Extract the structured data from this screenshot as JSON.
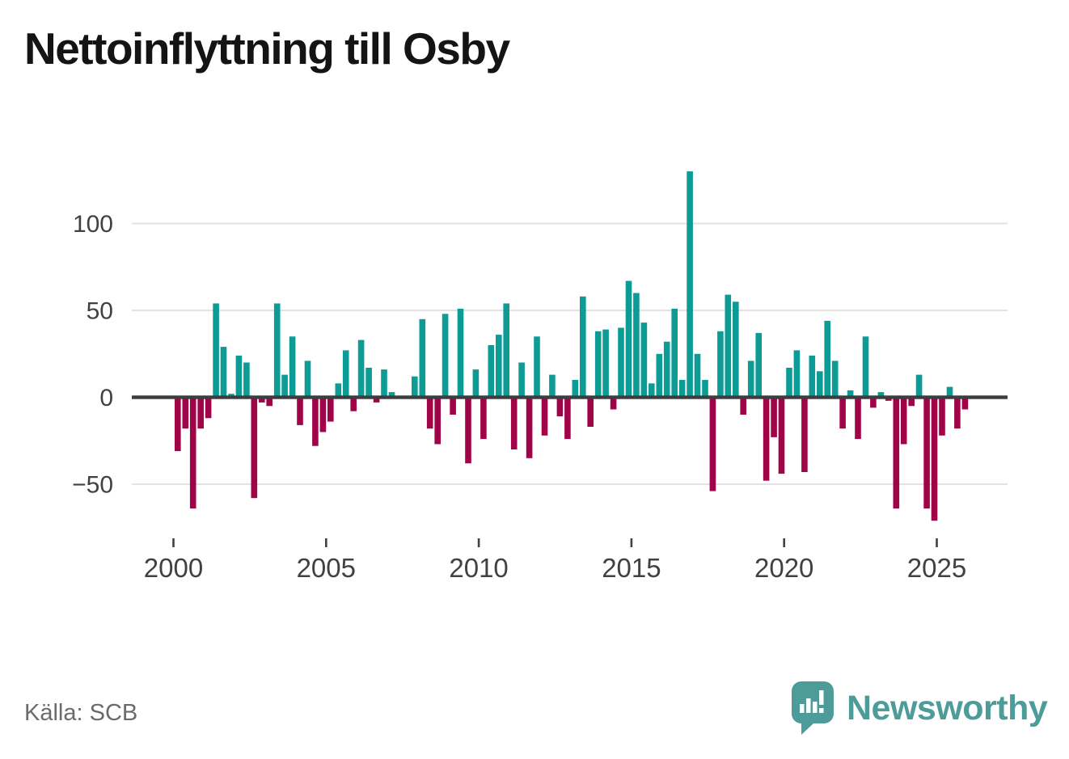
{
  "header": {
    "title": "Nettoinflyttning till Osby"
  },
  "chart_data": {
    "type": "bar",
    "title": "Nettoinflyttning till Osby",
    "frequency": "quarterly",
    "start_period": "2000Q1",
    "end_period": "2025Q4",
    "values": [
      -31,
      -18,
      -64,
      -18,
      -12,
      54,
      29,
      2,
      24,
      20,
      -58,
      -3,
      -5,
      54,
      13,
      35,
      -16,
      21,
      -28,
      -20,
      -14,
      8,
      27,
      -8,
      33,
      17,
      -3,
      16,
      3,
      0,
      0,
      12,
      45,
      -18,
      -27,
      48,
      -10,
      51,
      -38,
      16,
      -24,
      30,
      36,
      54,
      -30,
      20,
      -35,
      35,
      -22,
      13,
      -11,
      -24,
      10,
      58,
      -17,
      38,
      39,
      -7,
      40,
      67,
      60,
      43,
      8,
      25,
      32,
      51,
      10,
      130,
      25,
      10,
      -54,
      38,
      59,
      55,
      -10,
      21,
      37,
      -48,
      -23,
      -44,
      17,
      27,
      -43,
      24,
      15,
      44,
      21,
      -18,
      4,
      -24,
      35,
      -6,
      3,
      -2,
      -64,
      -27,
      -5,
      13,
      -64,
      -71,
      -22,
      6,
      -18,
      -7
    ],
    "y_ticks": [
      {
        "value": 100,
        "label": "100"
      },
      {
        "value": 50,
        "label": "50"
      },
      {
        "value": 0,
        "label": "0"
      },
      {
        "value": -50,
        "label": "−50"
      }
    ],
    "x_ticks": [
      {
        "year": 2000,
        "label": "2000"
      },
      {
        "year": 2005,
        "label": "2005"
      },
      {
        "year": 2010,
        "label": "2010"
      },
      {
        "year": 2015,
        "label": "2015"
      },
      {
        "year": 2020,
        "label": "2020"
      },
      {
        "year": 2025,
        "label": "2025"
      }
    ],
    "ylim": [
      -75,
      135
    ],
    "grid": "horizontal",
    "legend": "none",
    "colors": {
      "positive": "#0d9b95",
      "negative": "#a10348",
      "gridline": "#e2e2e2",
      "zero_line": "#3d3d3d",
      "axis_text": "#414141"
    }
  },
  "footer": {
    "source": "Källa: SCB",
    "brand": "Newsworthy",
    "brand_color": "#4d9c99"
  }
}
